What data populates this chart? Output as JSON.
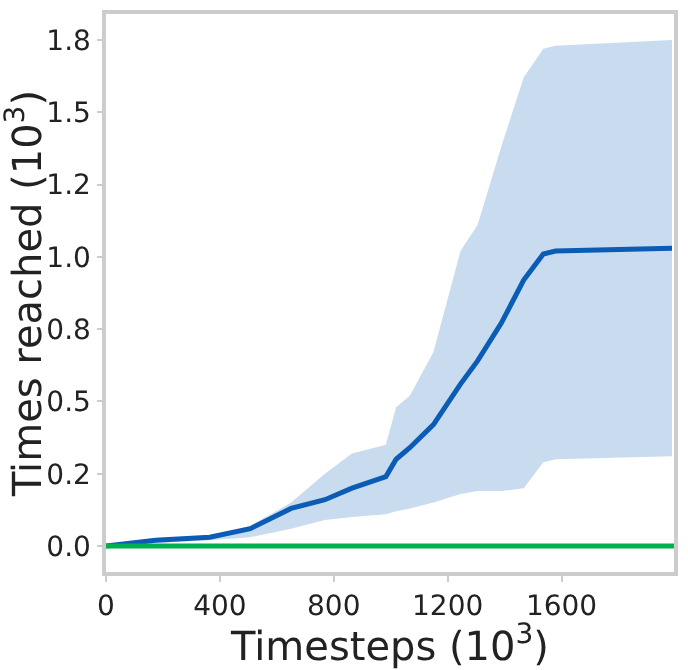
{
  "chart_data": {
    "type": "line",
    "xlabel": "Timesteps (10$^{3}$)",
    "ylabel": "Times reached (10$^{3}$)",
    "xlim": [
      0,
      1995
    ],
    "xticks": [
      0,
      400,
      800,
      1200,
      1600
    ],
    "ylim": [
      -0.09,
      1.84
    ],
    "yticks": [
      {
        "value": 0,
        "label": "0.0"
      },
      {
        "value": 0.25,
        "label": "0.2"
      },
      {
        "value": 0.5,
        "label": "0.5"
      },
      {
        "value": 0.75,
        "label": "0.8"
      },
      {
        "value": 1.0,
        "label": "1.0"
      },
      {
        "value": 1.25,
        "label": "1.2"
      },
      {
        "value": 1.5,
        "label": "1.5"
      },
      {
        "value": 1.75,
        "label": "1.8"
      }
    ],
    "marker": "none",
    "line_style": "solid",
    "series": [
      {
        "color": "#0a5cb4",
        "x": [
          0,
          174,
          364,
          507,
          650,
          769,
          864,
          983,
          1019,
          1067,
          1150,
          1245,
          1305,
          1388,
          1467,
          1536,
          1579,
          1988
        ],
        "values": [
          0,
          0.02,
          0.03,
          0.06,
          0.13,
          0.16,
          0.2,
          0.24,
          0.3,
          0.34,
          0.42,
          0.56,
          0.64,
          0.77,
          0.92,
          1.01,
          1.02,
          1.03
        ],
        "lower": [
          0,
          0.01,
          0.02,
          0.03,
          0.06,
          0.09,
          0.1,
          0.11,
          0.12,
          0.13,
          0.15,
          0.18,
          0.19,
          0.19,
          0.2,
          0.29,
          0.3,
          0.31
        ],
        "upper": [
          0,
          0.02,
          0.03,
          0.07,
          0.15,
          0.25,
          0.32,
          0.35,
          0.48,
          0.52,
          0.67,
          1.02,
          1.11,
          1.38,
          1.62,
          1.72,
          1.73,
          1.75
        ]
      },
      {
        "color": "#00b050",
        "x": [
          0,
          1995
        ],
        "values": [
          0,
          0
        ]
      }
    ]
  }
}
